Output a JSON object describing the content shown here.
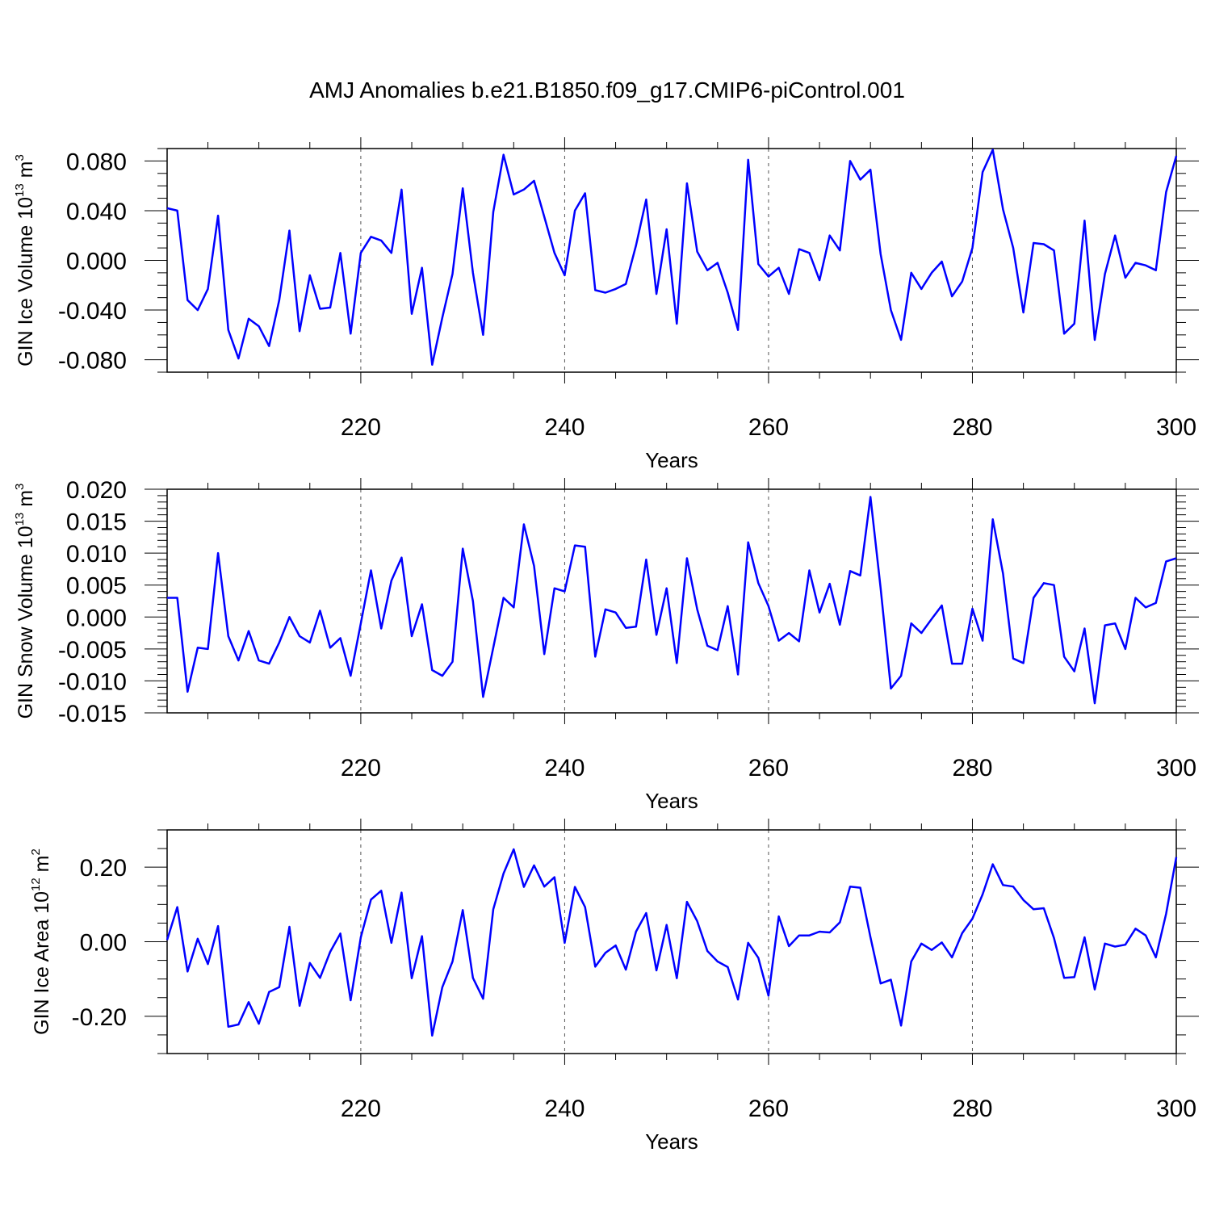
{
  "title": "AMJ Anomalies b.e21.B1850.f09_g17.CMIP6-piControl.001",
  "colors": {
    "line": "#0000ff",
    "axis": "#000000",
    "refline": "#555555"
  },
  "chart_data": [
    {
      "type": "line",
      "ylabel_main": "GIN Ice Volume 10",
      "ylabel_exp": "13",
      "ylabel_unit": " m",
      "ylabel_unit_exp": "3",
      "xlabel": "Years",
      "xlim": [
        201,
        300
      ],
      "ylim": [
        -0.09,
        0.09
      ],
      "yticks": [
        -0.08,
        -0.04,
        0.0,
        0.04,
        0.08
      ],
      "ytick_labels": [
        "-0.080",
        "-0.040",
        "0.000",
        "0.040",
        "0.080"
      ],
      "yminor": 0.01,
      "xticks": [
        220,
        240,
        260,
        280,
        300
      ],
      "xtick_labels": [
        "220",
        "240",
        "260",
        "280",
        "300"
      ],
      "x": [
        201,
        202,
        203,
        204,
        205,
        206,
        207,
        208,
        209,
        210,
        211,
        212,
        213,
        214,
        215,
        216,
        217,
        218,
        219,
        220,
        221,
        222,
        223,
        224,
        225,
        226,
        227,
        228,
        229,
        230,
        231,
        232,
        233,
        234,
        235,
        236,
        237,
        238,
        239,
        240,
        241,
        242,
        243,
        244,
        245,
        246,
        247,
        248,
        249,
        250,
        251,
        252,
        253,
        254,
        255,
        256,
        257,
        258,
        259,
        260,
        261,
        262,
        263,
        264,
        265,
        266,
        267,
        268,
        269,
        270,
        271,
        272,
        273,
        274,
        275,
        276,
        277,
        278,
        279,
        280,
        281,
        282,
        283,
        284,
        285,
        286,
        287,
        288,
        289,
        290,
        291,
        292,
        293,
        294,
        295,
        296,
        297,
        298,
        299,
        300
      ],
      "values": [
        0.042,
        0.04,
        -0.032,
        -0.04,
        -0.023,
        0.036,
        -0.056,
        -0.079,
        -0.047,
        -0.053,
        -0.069,
        -0.032,
        0.024,
        -0.057,
        -0.012,
        -0.039,
        -0.038,
        0.006,
        -0.059,
        0.006,
        0.019,
        0.016,
        0.006,
        0.057,
        -0.043,
        -0.006,
        -0.084,
        -0.046,
        -0.011,
        0.058,
        -0.01,
        -0.06,
        0.039,
        0.085,
        0.053,
        0.057,
        0.064,
        0.035,
        0.006,
        -0.012,
        0.04,
        0.054,
        -0.024,
        -0.026,
        -0.023,
        -0.019,
        0.012,
        0.049,
        -0.027,
        0.025,
        -0.051,
        0.062,
        0.007,
        -0.008,
        -0.002,
        -0.026,
        -0.056,
        0.081,
        -0.003,
        -0.013,
        -0.006,
        -0.027,
        0.009,
        0.006,
        -0.016,
        0.02,
        0.008,
        0.08,
        0.065,
        0.073,
        0.005,
        -0.04,
        -0.064,
        -0.01,
        -0.023,
        -0.01,
        -0.001,
        -0.029,
        -0.017,
        0.01,
        0.071,
        0.089,
        0.041,
        0.01,
        -0.042,
        0.014,
        0.013,
        0.008,
        -0.059,
        -0.051,
        0.032,
        -0.064,
        -0.011,
        0.02,
        -0.014,
        -0.002,
        -0.004,
        -0.008,
        0.055,
        0.084
      ]
    },
    {
      "type": "line",
      "ylabel_main": "GIN Snow Volume 10",
      "ylabel_exp": "13",
      "ylabel_unit": " m",
      "ylabel_unit_exp": "3",
      "xlabel": "Years",
      "xlim": [
        201,
        300
      ],
      "ylim": [
        -0.015,
        0.02
      ],
      "yticks": [
        -0.015,
        -0.01,
        -0.005,
        0.0,
        0.005,
        0.01,
        0.015,
        0.02
      ],
      "ytick_labels": [
        "-0.015",
        "-0.010",
        "-0.005",
        "0.000",
        "0.005",
        "0.010",
        "0.015",
        "0.020"
      ],
      "yminor": 0.001,
      "xticks": [
        220,
        240,
        260,
        280,
        300
      ],
      "xtick_labels": [
        "220",
        "240",
        "260",
        "280",
        "300"
      ],
      "x": [
        201,
        202,
        203,
        204,
        205,
        206,
        207,
        208,
        209,
        210,
        211,
        212,
        213,
        214,
        215,
        216,
        217,
        218,
        219,
        220,
        221,
        222,
        223,
        224,
        225,
        226,
        227,
        228,
        229,
        230,
        231,
        232,
        233,
        234,
        235,
        236,
        237,
        238,
        239,
        240,
        241,
        242,
        243,
        244,
        245,
        246,
        247,
        248,
        249,
        250,
        251,
        252,
        253,
        254,
        255,
        256,
        257,
        258,
        259,
        260,
        261,
        262,
        263,
        264,
        265,
        266,
        267,
        268,
        269,
        270,
        271,
        272,
        273,
        274,
        275,
        276,
        277,
        278,
        279,
        280,
        281,
        282,
        283,
        284,
        285,
        286,
        287,
        288,
        289,
        290,
        291,
        292,
        293,
        294,
        295,
        296,
        297,
        298,
        299,
        300
      ],
      "values": [
        0.003,
        0.003,
        -0.0117,
        -0.0048,
        -0.005,
        0.01,
        -0.003,
        -0.0068,
        -0.0022,
        -0.0068,
        -0.0073,
        -0.004,
        0.0,
        -0.003,
        -0.004,
        0.001,
        -0.0048,
        -0.0033,
        -0.0092,
        -0.001,
        0.0073,
        -0.0018,
        0.0057,
        0.0093,
        -0.003,
        0.002,
        -0.0083,
        -0.0092,
        -0.007,
        0.0107,
        0.0025,
        -0.0125,
        -0.0048,
        0.003,
        0.0015,
        0.0145,
        0.008,
        -0.0058,
        0.0045,
        0.004,
        0.0112,
        0.011,
        -0.0062,
        0.0012,
        0.0007,
        -0.0017,
        -0.0015,
        0.009,
        -0.0028,
        0.0045,
        -0.0072,
        0.0092,
        0.0012,
        -0.0045,
        -0.0052,
        0.0017,
        -0.009,
        0.0117,
        0.0053,
        0.0017,
        -0.0037,
        -0.0025,
        -0.0038,
        0.0073,
        0.0007,
        0.0052,
        -0.0012,
        0.0072,
        0.0065,
        0.0188,
        0.0045,
        -0.0112,
        -0.0092,
        -0.001,
        -0.0025,
        -0.0003,
        0.0018,
        -0.0073,
        -0.0073,
        0.0013,
        -0.0037,
        0.0153,
        0.0068,
        -0.0065,
        -0.0072,
        0.003,
        0.0053,
        0.005,
        -0.0062,
        -0.0085,
        -0.0018,
        -0.0135,
        -0.0013,
        -0.001,
        -0.005,
        0.003,
        0.0015,
        0.0022,
        0.0087,
        0.0092
      ]
    },
    {
      "type": "line",
      "ylabel_main": "GIN Ice Area 10",
      "ylabel_exp": "12",
      "ylabel_unit": " m",
      "ylabel_unit_exp": "2",
      "xlabel": "Years",
      "xlim": [
        201,
        300
      ],
      "ylim": [
        -0.3,
        0.3
      ],
      "yticks": [
        -0.2,
        0.0,
        0.2
      ],
      "ytick_labels": [
        "-0.20",
        "0.00",
        "0.20"
      ],
      "yminor": 0.05,
      "xticks": [
        220,
        240,
        260,
        280,
        300
      ],
      "xtick_labels": [
        "220",
        "240",
        "260",
        "280",
        "300"
      ],
      "x": [
        201,
        202,
        203,
        204,
        205,
        206,
        207,
        208,
        209,
        210,
        211,
        212,
        213,
        214,
        215,
        216,
        217,
        218,
        219,
        220,
        221,
        222,
        223,
        224,
        225,
        226,
        227,
        228,
        229,
        230,
        231,
        232,
        233,
        234,
        235,
        236,
        237,
        238,
        239,
        240,
        241,
        242,
        243,
        244,
        245,
        246,
        247,
        248,
        249,
        250,
        251,
        252,
        253,
        254,
        255,
        256,
        257,
        258,
        259,
        260,
        261,
        262,
        263,
        264,
        265,
        266,
        267,
        268,
        269,
        270,
        271,
        272,
        273,
        274,
        275,
        276,
        277,
        278,
        279,
        280,
        281,
        282,
        283,
        284,
        285,
        286,
        287,
        288,
        289,
        290,
        291,
        292,
        293,
        294,
        295,
        296,
        297,
        298,
        299,
        300
      ],
      "values": [
        0.005,
        0.093,
        -0.08,
        0.008,
        -0.06,
        0.042,
        -0.228,
        -0.222,
        -0.162,
        -0.22,
        -0.135,
        -0.122,
        0.04,
        -0.172,
        -0.057,
        -0.097,
        -0.027,
        0.022,
        -0.157,
        0.012,
        0.113,
        0.137,
        -0.003,
        0.132,
        -0.098,
        0.015,
        -0.252,
        -0.122,
        -0.053,
        0.085,
        -0.097,
        -0.153,
        0.087,
        0.183,
        0.248,
        0.147,
        0.205,
        0.148,
        0.173,
        -0.003,
        0.147,
        0.093,
        -0.067,
        -0.03,
        -0.01,
        -0.075,
        0.027,
        0.077,
        -0.077,
        0.045,
        -0.098,
        0.107,
        0.055,
        -0.025,
        -0.053,
        -0.068,
        -0.155,
        -0.003,
        -0.043,
        -0.145,
        0.068,
        -0.012,
        0.017,
        0.017,
        0.027,
        0.025,
        0.052,
        0.148,
        0.145,
        0.012,
        -0.112,
        -0.102,
        -0.225,
        -0.053,
        -0.005,
        -0.022,
        -0.002,
        -0.042,
        0.023,
        0.062,
        0.127,
        0.208,
        0.152,
        0.148,
        0.112,
        0.087,
        0.09,
        0.01,
        -0.097,
        -0.095,
        0.012,
        -0.128,
        -0.005,
        -0.013,
        -0.008,
        0.035,
        0.017,
        -0.042,
        0.075,
        0.227
      ]
    }
  ]
}
